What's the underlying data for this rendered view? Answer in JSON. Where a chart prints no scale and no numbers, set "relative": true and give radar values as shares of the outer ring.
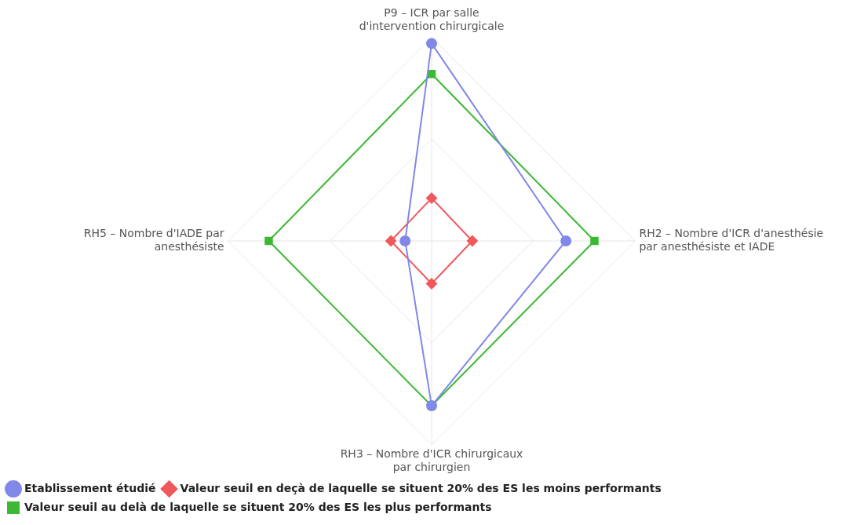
{
  "chart_data": {
    "type": "radar",
    "relative": true,
    "grid": true,
    "legend": "bottom",
    "categories": [
      "P9 – ICR par salle d'intervention chirurgicale",
      "RH2 – Nombre d'ICR d'anesthésie par anesthésiste et IADE",
      "RH3 – Nombre d'ICR chirurgicaux par chirurgien",
      "RH5 – Nombre d'IADE par anesthésiste"
    ],
    "series": [
      {
        "name": "Etablissement étudié",
        "color": "#8088e8",
        "marker": "circle",
        "values": [
          0.97,
          0.66,
          0.81,
          0.13
        ]
      },
      {
        "name": "Valeur seuil en deçà de laquelle se situent 20% des ES les moins performants",
        "color": "#f0585c",
        "marker": "diamond",
        "values": [
          0.21,
          0.2,
          0.21,
          0.2
        ]
      },
      {
        "name": "Valeur seuil au delà de laquelle se situent 20% des ES les plus performants",
        "color": "#3cb832",
        "marker": "square",
        "values": [
          0.82,
          0.8,
          0.81,
          0.8
        ]
      }
    ]
  }
}
